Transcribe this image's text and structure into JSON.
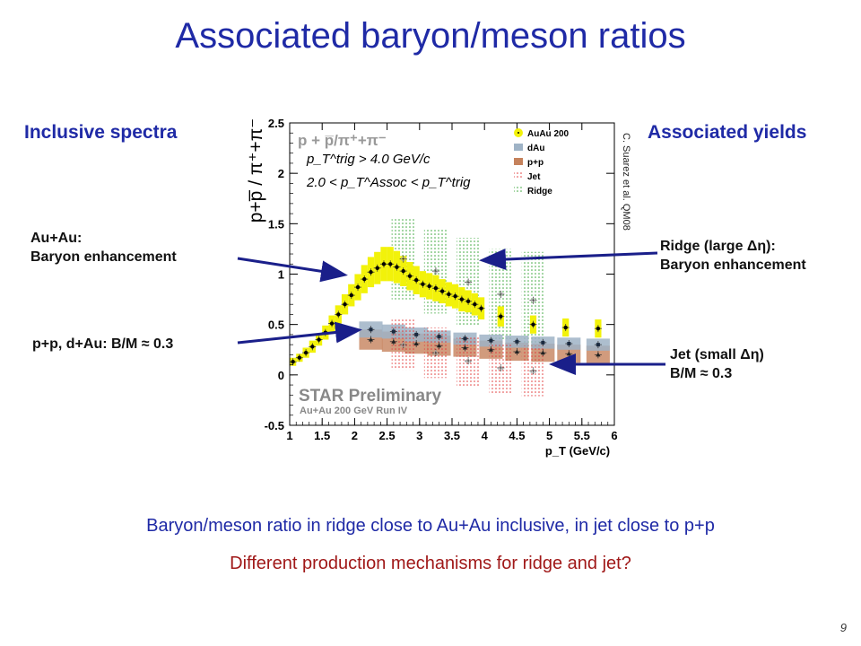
{
  "slide": {
    "title": "Associated baryon/meson ratios",
    "left_heading": "Inclusive spectra",
    "right_heading": "Associated yields",
    "ann_auau": "Au+Au:\nBaryon enhancement",
    "ann_pp": "p+p, d+Au: B/M ≈ 0.3",
    "ann_ridge": "Ridge (large Δη):\nBaryon enhancement",
    "ann_jet": "Jet (small Δη)\nB/M ≈ 0.3",
    "credit": "C. Suarez et al. QM08",
    "bottom_line_1": "Baryon/meson ratio in ridge close to Au+Au inclusive, in jet close to p+p",
    "bottom_line_2": "Different production mechanisms for ridge and jet?",
    "page_number": "9"
  },
  "colors": {
    "title_blue": "#1f2aa6",
    "question_red": "#a01818",
    "arrow_navy": "#1a1f8a",
    "auau_band": "#f2f20a",
    "dau_band": "#9fb3c6",
    "pp_band": "#c5825c",
    "jet": "#e23b3b",
    "ridge": "#3aa63a"
  },
  "chart_data": {
    "type": "scatter",
    "ylabel": "p+p̅ / π⁺+π⁻",
    "xlabel": "p_T (GeV/c)",
    "xlim": [
      1,
      6
    ],
    "ylim": [
      -0.5,
      2.5
    ],
    "xticks": [
      "1",
      "1.5",
      "2",
      "2.5",
      "3",
      "3.5",
      "4",
      "4.5",
      "5",
      "5.5",
      "6"
    ],
    "yticks": [
      "-0.5",
      "0",
      "0.5",
      "1",
      "1.5",
      "2",
      "2.5"
    ],
    "inner_title": "p + p̅/π⁺+π⁻",
    "cut_trig": "p_T^trig > 4.0 GeV/c",
    "cut_assoc": "2.0 < p_T^Assoc < p_T^trig",
    "watermark": "STAR Preliminary",
    "watermark_sub": "Au+Au 200 GeV Run IV",
    "legend_position": "top-right",
    "legend": [
      "AuAu 200",
      "dAu",
      "p+p",
      "Jet",
      "Ridge"
    ],
    "series": [
      {
        "name": "AuAu 200",
        "x": [
          1.05,
          1.15,
          1.25,
          1.35,
          1.45,
          1.55,
          1.65,
          1.75,
          1.85,
          1.95,
          2.05,
          2.15,
          2.25,
          2.35,
          2.45,
          2.55,
          2.65,
          2.75,
          2.85,
          2.95,
          3.05,
          3.15,
          3.25,
          3.35,
          3.45,
          3.55,
          3.65,
          3.75,
          3.85,
          3.95,
          4.25,
          4.75,
          5.25,
          5.75
        ],
        "y": [
          0.13,
          0.17,
          0.22,
          0.28,
          0.35,
          0.42,
          0.51,
          0.6,
          0.7,
          0.79,
          0.87,
          0.95,
          1.02,
          1.06,
          1.1,
          1.1,
          1.07,
          1.03,
          0.98,
          0.94,
          0.9,
          0.88,
          0.86,
          0.83,
          0.8,
          0.78,
          0.75,
          0.73,
          0.7,
          0.66,
          0.58,
          0.5,
          0.47,
          0.46
        ],
        "err": [
          0.04,
          0.04,
          0.05,
          0.06,
          0.06,
          0.07,
          0.08,
          0.09,
          0.1,
          0.11,
          0.13,
          0.14,
          0.15,
          0.16,
          0.17,
          0.17,
          0.16,
          0.15,
          0.14,
          0.14,
          0.13,
          0.13,
          0.13,
          0.12,
          0.12,
          0.12,
          0.12,
          0.11,
          0.11,
          0.11,
          0.1,
          0.09,
          0.09,
          0.09
        ]
      },
      {
        "name": "dAu",
        "x": [
          2.25,
          2.6,
          2.95,
          3.3,
          3.7,
          4.1,
          4.5,
          4.9,
          5.3,
          5.75
        ],
        "y": [
          0.45,
          0.43,
          0.4,
          0.38,
          0.36,
          0.34,
          0.33,
          0.32,
          0.31,
          0.3
        ],
        "err": [
          0.08,
          0.07,
          0.07,
          0.06,
          0.06,
          0.06,
          0.06,
          0.06,
          0.06,
          0.06
        ]
      },
      {
        "name": "p+p",
        "x": [
          2.25,
          2.6,
          2.95,
          3.3,
          3.7,
          4.1,
          4.5,
          4.9,
          5.3,
          5.75
        ],
        "y": [
          0.35,
          0.33,
          0.31,
          0.29,
          0.27,
          0.25,
          0.23,
          0.22,
          0.21,
          0.2
        ],
        "err": [
          0.1,
          0.1,
          0.1,
          0.1,
          0.09,
          0.09,
          0.09,
          0.09,
          0.09,
          0.09
        ]
      },
      {
        "name": "Jet",
        "x": [
          2.75,
          3.25,
          3.75,
          4.25,
          4.75
        ],
        "y": [
          0.3,
          0.22,
          0.14,
          0.07,
          0.04
        ],
        "err": [
          0.25,
          0.25,
          0.25,
          0.25,
          0.25
        ]
      },
      {
        "name": "Ridge",
        "x": [
          2.75,
          3.25,
          3.75,
          4.25,
          4.75
        ],
        "y": [
          1.15,
          1.03,
          0.92,
          0.8,
          0.74
        ],
        "err": [
          0.4,
          0.42,
          0.44,
          0.45,
          0.48
        ]
      }
    ]
  }
}
